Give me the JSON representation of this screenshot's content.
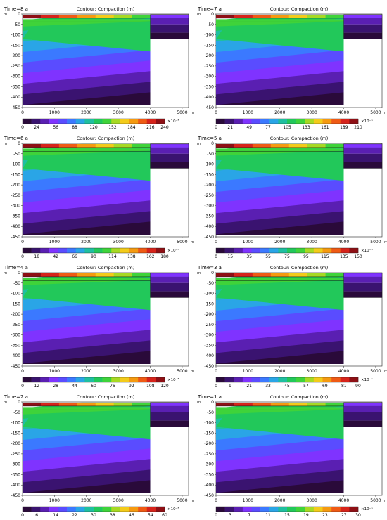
{
  "chart_data": [
    {
      "type": "contour",
      "time_label": "Time=8 a",
      "title": "Contour: Compaction (m)",
      "x_unit": "m",
      "y_unit": "m",
      "x_ticks": [
        "0",
        "1000",
        "2000",
        "3000",
        "4000",
        "5000"
      ],
      "y_ticks": [
        "0",
        "-50",
        "-100",
        "-150",
        "-200",
        "-250",
        "-300",
        "-350",
        "-400",
        "-450"
      ],
      "xlim": [
        0,
        5200
      ],
      "ylim": [
        -450,
        0
      ],
      "colorbar_ticks": [
        "0",
        "24",
        "56",
        "88",
        "120",
        "152",
        "184",
        "216",
        "240"
      ],
      "colorbar_scale": "×10⁻⁵",
      "colorbar_max": 240
    },
    {
      "type": "contour",
      "time_label": "Time=7 a",
      "title": "Contour: Compaction (m)",
      "x_unit": "m",
      "y_unit": "m",
      "x_ticks": [
        "0",
        "1000",
        "2000",
        "3000",
        "4000",
        "5000"
      ],
      "y_ticks": [
        "0",
        "-50",
        "-100",
        "-150",
        "-200",
        "-250",
        "-300",
        "-350",
        "-400",
        "-450"
      ],
      "xlim": [
        0,
        5200
      ],
      "ylim": [
        -450,
        0
      ],
      "colorbar_ticks": [
        "0",
        "21",
        "49",
        "77",
        "105",
        "133",
        "161",
        "189",
        "210"
      ],
      "colorbar_scale": "×10⁻⁵",
      "colorbar_max": 210
    },
    {
      "type": "contour",
      "time_label": "Time=6 a",
      "title": "Contour: Compaction (m)",
      "x_unit": "m",
      "y_unit": "m",
      "x_ticks": [
        "0",
        "1000",
        "2000",
        "3000",
        "4000",
        "5000"
      ],
      "y_ticks": [
        "0",
        "-50",
        "-100",
        "-150",
        "-200",
        "-250",
        "-300",
        "-350",
        "-400",
        "-450"
      ],
      "xlim": [
        0,
        5200
      ],
      "ylim": [
        -450,
        0
      ],
      "colorbar_ticks": [
        "0",
        "18",
        "42",
        "66",
        "90",
        "114",
        "138",
        "162",
        "180"
      ],
      "colorbar_scale": "×10⁻⁵",
      "colorbar_max": 180
    },
    {
      "type": "contour",
      "time_label": "Time=5 a",
      "title": "Contour: Compaction (m)",
      "x_unit": "m",
      "y_unit": "m",
      "x_ticks": [
        "0",
        "1000",
        "2000",
        "3000",
        "4000",
        "5000"
      ],
      "y_ticks": [
        "0",
        "-50",
        "-100",
        "-150",
        "-200",
        "-250",
        "-300",
        "-350",
        "-400",
        "-450"
      ],
      "xlim": [
        0,
        5200
      ],
      "ylim": [
        -450,
        0
      ],
      "colorbar_ticks": [
        "0",
        "15",
        "35",
        "55",
        "75",
        "95",
        "115",
        "135",
        "150"
      ],
      "colorbar_scale": "×10⁻⁵",
      "colorbar_max": 150
    },
    {
      "type": "contour",
      "time_label": "Time=4 a",
      "title": "Contour: Compaction (m)",
      "x_unit": "m",
      "y_unit": "m",
      "x_ticks": [
        "0",
        "1000",
        "2000",
        "3000",
        "4000",
        "5000"
      ],
      "y_ticks": [
        "0",
        "-50",
        "-100",
        "-150",
        "-200",
        "-250",
        "-300",
        "-350",
        "-400",
        "-450"
      ],
      "xlim": [
        0,
        5200
      ],
      "ylim": [
        -450,
        0
      ],
      "colorbar_ticks": [
        "0",
        "12",
        "28",
        "44",
        "60",
        "76",
        "92",
        "108",
        "120"
      ],
      "colorbar_scale": "×10⁻⁵",
      "colorbar_max": 120
    },
    {
      "type": "contour",
      "time_label": "Time=3 a",
      "title": "Contour: Compaction (m)",
      "x_unit": "m",
      "y_unit": "m",
      "x_ticks": [
        "0",
        "1000",
        "2000",
        "3000",
        "4000",
        "5000"
      ],
      "y_ticks": [
        "0",
        "-50",
        "-100",
        "-150",
        "-200",
        "-250",
        "-300",
        "-350",
        "-400",
        "-450"
      ],
      "xlim": [
        0,
        5200
      ],
      "ylim": [
        -450,
        0
      ],
      "colorbar_ticks": [
        "0",
        "9",
        "21",
        "33",
        "45",
        "57",
        "69",
        "81",
        "90"
      ],
      "colorbar_scale": "×10⁻⁵",
      "colorbar_max": 90
    },
    {
      "type": "contour",
      "time_label": "Time=2 a",
      "title": "Contour: Compaction (m)",
      "x_unit": "m",
      "y_unit": "m",
      "x_ticks": [
        "0",
        "1000",
        "2000",
        "3000",
        "4000",
        "5000"
      ],
      "y_ticks": [
        "0",
        "-50",
        "-100",
        "-150",
        "-200",
        "-250",
        "-300",
        "-350",
        "-400",
        "-450"
      ],
      "xlim": [
        0,
        5200
      ],
      "ylim": [
        -450,
        0
      ],
      "colorbar_ticks": [
        "0",
        "6",
        "14",
        "22",
        "30",
        "38",
        "46",
        "54",
        "60"
      ],
      "colorbar_scale": "×10⁻⁵",
      "colorbar_max": 60
    },
    {
      "type": "contour",
      "time_label": "Time=1 a",
      "title": "Contour: Compaction (m)",
      "x_unit": "m",
      "y_unit": "m",
      "x_ticks": [
        "0",
        "1000",
        "2000",
        "3000",
        "4000",
        "5000"
      ],
      "y_ticks": [
        "0",
        "-50",
        "-100",
        "-150",
        "-200",
        "-250",
        "-300",
        "-350",
        "-400",
        "-450"
      ],
      "xlim": [
        0,
        5200
      ],
      "ylim": [
        -450,
        0
      ],
      "colorbar_ticks": [
        "0",
        "3",
        "7",
        "11",
        "15",
        "19",
        "23",
        "27",
        "30"
      ],
      "colorbar_scale": "×10⁻⁵",
      "colorbar_max": 30
    }
  ],
  "colors": {
    "palette": [
      "#2a0a3a",
      "#3a1370",
      "#5a1fb2",
      "#7f33ff",
      "#5a4cff",
      "#3b79ff",
      "#2aa5e6",
      "#1fbfa0",
      "#22c85a",
      "#3fd33a",
      "#a7d923",
      "#f3cb1a",
      "#f59a10",
      "#ef5a14",
      "#d6231a",
      "#8e0f14"
    ]
  }
}
